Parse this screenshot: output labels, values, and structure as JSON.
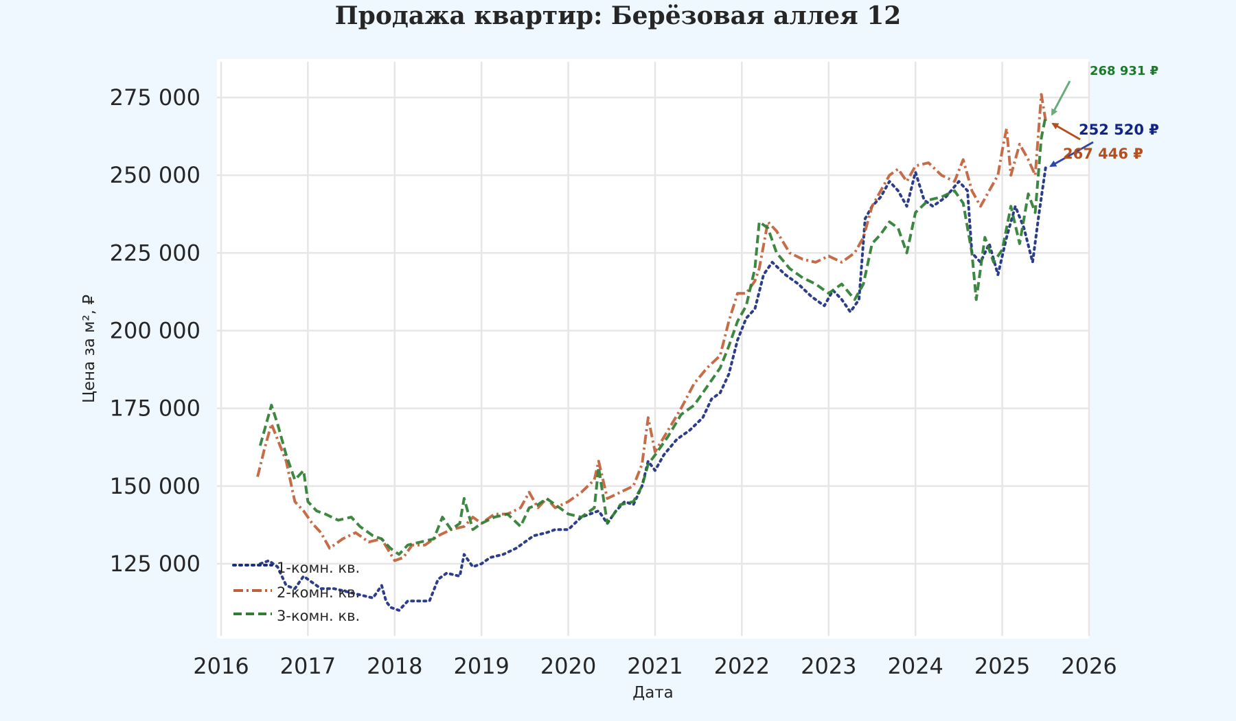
{
  "title": "Продажа квартир: Берёзовая аллея 12",
  "chart_data": {
    "type": "line",
    "title": "Продажа квартир: Берёзовая аллея 12",
    "xlabel": "Дата",
    "ylabel": "Цена за м², ₽",
    "xlim": [
      2016,
      2026
    ],
    "ylim": [
      103000,
      285000
    ],
    "grid": true,
    "legend_position": "lower left",
    "x_ticks": [
      "2016",
      "2017",
      "2018",
      "2019",
      "2020",
      "2021",
      "2022",
      "2023",
      "2024",
      "2025",
      "2026"
    ],
    "y_ticks": [
      {
        "value": 125000,
        "label": "125 000"
      },
      {
        "value": 150000,
        "label": "150 000"
      },
      {
        "value": 175000,
        "label": "175 000"
      },
      {
        "value": 200000,
        "label": "200 000"
      },
      {
        "value": 225000,
        "label": "225 000"
      },
      {
        "value": 250000,
        "label": "250 000"
      },
      {
        "value": 275000,
        "label": "275 000"
      }
    ],
    "series": [
      {
        "name": "1-комн. кв.",
        "color": "#1a2e80",
        "dash": "3 6",
        "x": [
          2016.45,
          2016.55,
          2016.65,
          2016.75,
          2016.85,
          2016.95,
          2017.05,
          2017.15,
          2017.3,
          2017.45,
          2017.6,
          2017.75,
          2017.85,
          2017.9,
          2017.95,
          2018.05,
          2018.15,
          2018.25,
          2018.4,
          2018.5,
          2018.6,
          2018.75,
          2018.8,
          2018.9,
          2019.0,
          2019.1,
          2019.25,
          2019.4,
          2019.5,
          2019.6,
          2019.75,
          2019.85,
          2020.0,
          2020.15,
          2020.25,
          2020.35,
          2020.45,
          2020.55,
          2020.65,
          2020.75,
          2020.85,
          2020.92,
          2021.0,
          2021.1,
          2021.25,
          2021.4,
          2021.55,
          2021.65,
          2021.75,
          2021.85,
          2021.95,
          2022.05,
          2022.15,
          2022.25,
          2022.35,
          2022.5,
          2022.65,
          2022.8,
          2022.95,
          2023.05,
          2023.15,
          2023.25,
          2023.35,
          2023.42,
          2023.5,
          2023.6,
          2023.7,
          2023.8,
          2023.9,
          2024.0,
          2024.1,
          2024.2,
          2024.35,
          2024.5,
          2024.6,
          2024.65,
          2024.75,
          2024.85,
          2024.95,
          2025.05,
          2025.15,
          2025.25,
          2025.35,
          2025.42,
          2025.5
        ],
        "y": [
          125000,
          126000,
          124000,
          118000,
          117000,
          121000,
          119000,
          117000,
          117000,
          116000,
          115000,
          114000,
          118000,
          113000,
          111000,
          110000,
          113000,
          113000,
          113000,
          120000,
          122000,
          121000,
          128000,
          124000,
          125000,
          127000,
          128000,
          130000,
          132000,
          134000,
          135000,
          136000,
          136000,
          140000,
          141000,
          142000,
          138000,
          142000,
          145000,
          144000,
          150000,
          158000,
          155000,
          160000,
          165000,
          168000,
          172000,
          178000,
          180000,
          186000,
          197000,
          204000,
          207000,
          218000,
          222000,
          218000,
          215000,
          211000,
          208000,
          213000,
          210000,
          206000,
          210000,
          236000,
          240000,
          243000,
          248000,
          245000,
          240000,
          251000,
          242000,
          240000,
          243000,
          248000,
          245000,
          225000,
          222000,
          228000,
          218000,
          230000,
          240000,
          233000,
          222000,
          237000,
          252520
        ]
      },
      {
        "name": "2-комн. кв.",
        "color": "#c0603a",
        "dash": "14 5 3 5",
        "x": [
          2016.42,
          2016.5,
          2016.58,
          2016.65,
          2016.75,
          2016.85,
          2016.95,
          2017.05,
          2017.15,
          2017.25,
          2017.4,
          2017.55,
          2017.7,
          2017.85,
          2018.0,
          2018.1,
          2018.2,
          2018.35,
          2018.5,
          2018.65,
          2018.8,
          2018.9,
          2019.0,
          2019.15,
          2019.3,
          2019.45,
          2019.55,
          2019.65,
          2019.75,
          2019.85,
          2020.0,
          2020.15,
          2020.3,
          2020.35,
          2020.45,
          2020.6,
          2020.75,
          2020.85,
          2020.92,
          2021.0,
          2021.15,
          2021.3,
          2021.45,
          2021.6,
          2021.75,
          2021.85,
          2021.95,
          2022.05,
          2022.15,
          2022.2,
          2022.3,
          2022.4,
          2022.55,
          2022.7,
          2022.85,
          2023.0,
          2023.15,
          2023.3,
          2023.4,
          2023.5,
          2023.6,
          2023.7,
          2023.8,
          2023.9,
          2024.0,
          2024.15,
          2024.3,
          2024.45,
          2024.55,
          2024.65,
          2024.75,
          2024.85,
          2024.95,
          2025.0,
          2025.05,
          2025.1,
          2025.2,
          2025.3,
          2025.38,
          2025.45,
          2025.5
        ],
        "y": [
          153000,
          162000,
          170000,
          165000,
          158000,
          145000,
          142000,
          138000,
          135000,
          130000,
          133000,
          135000,
          132000,
          133000,
          126000,
          127000,
          131000,
          131000,
          134000,
          136000,
          137000,
          140000,
          138000,
          141000,
          141000,
          143000,
          148000,
          143000,
          146000,
          143000,
          145000,
          148000,
          152000,
          158000,
          146000,
          148000,
          150000,
          157000,
          172000,
          161000,
          168000,
          175000,
          183000,
          188000,
          192000,
          203000,
          212000,
          212000,
          216000,
          220000,
          235000,
          232000,
          225000,
          223000,
          222000,
          224000,
          222000,
          225000,
          230000,
          240000,
          245000,
          250000,
          252000,
          248000,
          253000,
          254000,
          250000,
          248000,
          255000,
          245000,
          240000,
          245000,
          250000,
          258000,
          265000,
          250000,
          260000,
          255000,
          250000,
          276000,
          267446
        ]
      },
      {
        "name": "3-комн. кв.",
        "color": "#2e7d32",
        "dash": "12 6",
        "x": [
          2016.45,
          2016.52,
          2016.58,
          2016.65,
          2016.75,
          2016.85,
          2016.95,
          2017.0,
          2017.1,
          2017.2,
          2017.35,
          2017.5,
          2017.6,
          2017.75,
          2017.85,
          2017.95,
          2018.05,
          2018.15,
          2018.3,
          2018.45,
          2018.55,
          2018.65,
          2018.75,
          2018.8,
          2018.9,
          2019.0,
          2019.15,
          2019.3,
          2019.45,
          2019.55,
          2019.65,
          2019.75,
          2019.85,
          2020.0,
          2020.15,
          2020.3,
          2020.35,
          2020.45,
          2020.6,
          2020.75,
          2020.85,
          2020.92,
          2021.0,
          2021.15,
          2021.3,
          2021.45,
          2021.6,
          2021.75,
          2021.85,
          2021.95,
          2022.05,
          2022.15,
          2022.2,
          2022.3,
          2022.4,
          2022.55,
          2022.7,
          2022.85,
          2023.0,
          2023.15,
          2023.3,
          2023.4,
          2023.5,
          2023.6,
          2023.7,
          2023.8,
          2023.9,
          2024.0,
          2024.15,
          2024.3,
          2024.45,
          2024.55,
          2024.65,
          2024.7,
          2024.8,
          2024.9,
          2025.0,
          2025.1,
          2025.2,
          2025.3,
          2025.38,
          2025.45,
          2025.5
        ],
        "y": [
          163000,
          170000,
          176000,
          170000,
          160000,
          152000,
          155000,
          145000,
          142000,
          141000,
          139000,
          140000,
          137000,
          134000,
          133000,
          130000,
          128000,
          131000,
          132000,
          133000,
          140000,
          136000,
          138000,
          146000,
          136000,
          138000,
          140000,
          141000,
          137000,
          143000,
          144000,
          146000,
          144000,
          141000,
          140000,
          143000,
          156000,
          138000,
          144000,
          145000,
          150000,
          157000,
          160000,
          166000,
          173000,
          176000,
          182000,
          188000,
          195000,
          203000,
          208000,
          220000,
          235000,
          233000,
          225000,
          220000,
          217000,
          215000,
          212000,
          215000,
          210000,
          215000,
          228000,
          231000,
          235000,
          233000,
          225000,
          238000,
          242000,
          243000,
          245000,
          241000,
          225000,
          210000,
          230000,
          222000,
          226000,
          240000,
          228000,
          244000,
          238000,
          262000,
          268931
        ]
      }
    ],
    "annotations": [
      {
        "series": "3-комн. кв.",
        "label": "268 931 ₽",
        "color": "#1b7a28",
        "x": 2025.5,
        "y": 268931
      },
      {
        "series": "1-комн. кв.",
        "label": "252 520 ₽",
        "color": "#10248a",
        "x": 2025.5,
        "y": 252520
      },
      {
        "series": "2-комн. кв.",
        "label": "267 446 ₽",
        "color": "#b5501e",
        "x": 2025.5,
        "y": 267446
      }
    ]
  },
  "legend": {
    "items": [
      {
        "label": "1-комн. кв."
      },
      {
        "label": "2-комн. кв."
      },
      {
        "label": "3-комн. кв."
      }
    ]
  }
}
